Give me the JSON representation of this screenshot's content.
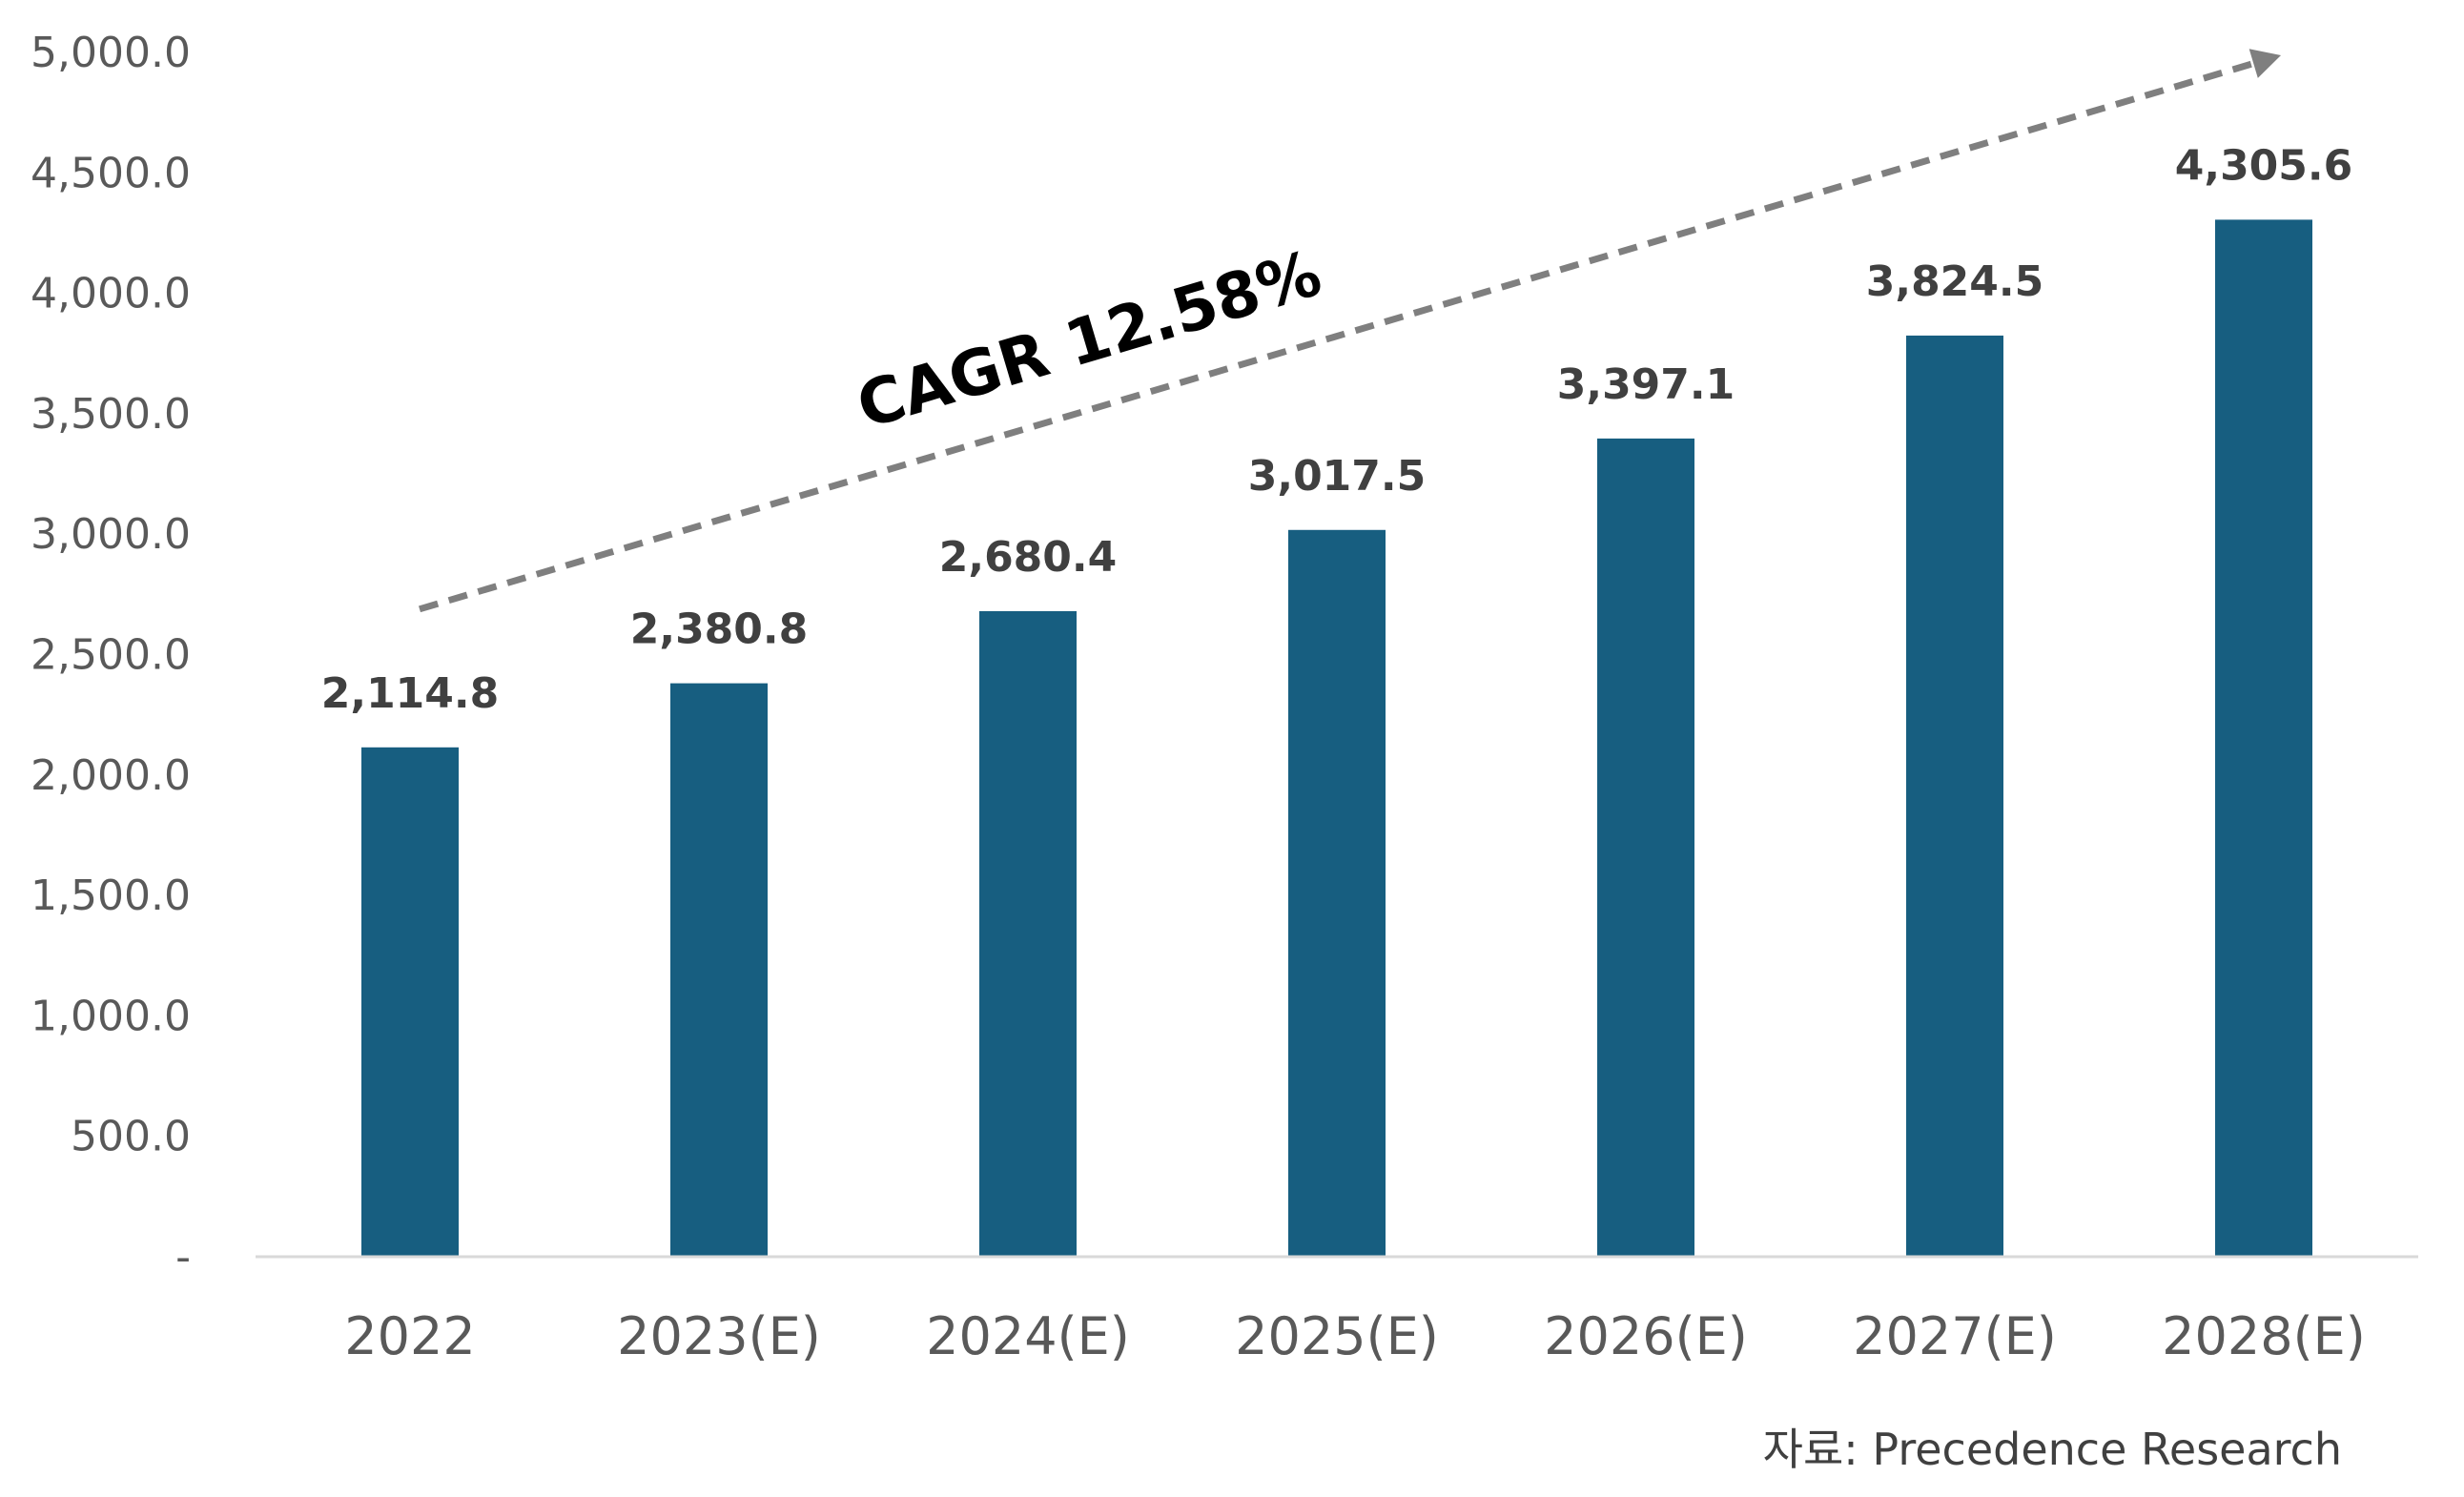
{
  "chart_data": {
    "type": "bar",
    "categories": [
      "2022",
      "2023(E)",
      "2024(E)",
      "2025(E)",
      "2026(E)",
      "2027(E)",
      "2028(E)"
    ],
    "values": [
      2114.8,
      2380.8,
      2680.4,
      3017.5,
      3397.1,
      3824.5,
      4305.6
    ],
    "data_labels": [
      "2,114.8",
      "2,380.8",
      "2,680.4",
      "3,017.5",
      "3,397.1",
      "3,824.5",
      "4,305.6"
    ],
    "y_ticks": [
      0,
      500,
      1000,
      1500,
      2000,
      2500,
      3000,
      3500,
      4000,
      4500,
      5000
    ],
    "y_tick_labels": [
      "-",
      "500.0",
      "1,000.0",
      "1,500.0",
      "2,000.0",
      "2,500.0",
      "3,000.0",
      "3,500.0",
      "4,000.0",
      "4,500.0",
      "5,000.0"
    ],
    "ylim": [
      0,
      5000
    ],
    "grid": false,
    "legend": "none",
    "bar_color": "#175e80",
    "annotation": {
      "text": "CAGR 12.58%",
      "arrow": "dashed",
      "arrow_color": "#7f7f7f"
    },
    "source": "자료: Precedence Research"
  }
}
